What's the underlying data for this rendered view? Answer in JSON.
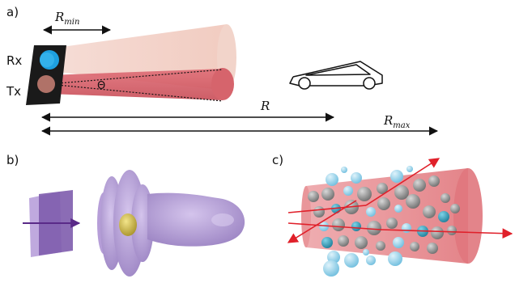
{
  "panels": {
    "a": "a)",
    "b": "b)",
    "c": "c)"
  },
  "panel_a": {
    "rx_label": "Rx",
    "tx_label": "Tx",
    "theta_label": "Θ",
    "r_min": {
      "base": "R",
      "sub": "min"
    },
    "r_label": "R",
    "r_max": {
      "base": "R",
      "sub": "max"
    }
  },
  "colors": {
    "rx_beam": "#f0c8c0",
    "tx_beam": "#d9606a",
    "rx_dot": "#1ea0e0",
    "tx_dot": "#b07268",
    "panel_device": "#1a1a1a",
    "antenna_purple": "#a890cc",
    "antenna_core": "#d4bf3c",
    "plate_purple": "#8a6cb8",
    "arrow_purple": "#5a2a88",
    "cone_red": "#e27d82",
    "ray_red": "#e0202a",
    "sphere_blue": "#8fd0ea",
    "sphere_grey": "#8a8a8a"
  }
}
